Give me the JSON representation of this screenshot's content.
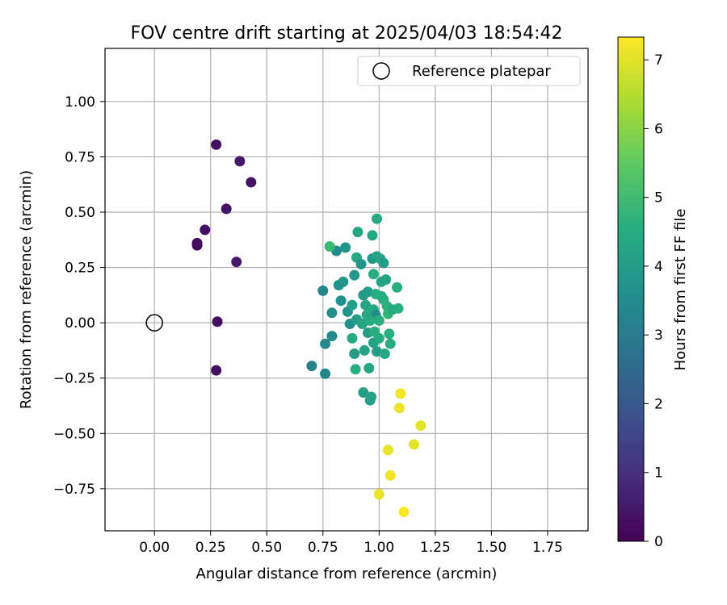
{
  "chart_data": {
    "type": "scatter",
    "title": "FOV centre drift starting at 2025/04/03 18:54:42",
    "xlabel": "Angular distance from reference (arcmin)",
    "ylabel": "Rotation from reference (arcmin)",
    "xlim": [
      -0.22,
      1.93
    ],
    "ylim": [
      -0.94,
      1.24
    ],
    "xticks": [
      "0.00",
      "0.25",
      "0.50",
      "0.75",
      "1.00",
      "1.25",
      "1.50",
      "1.75"
    ],
    "yticks": [
      "−0.75",
      "−0.50",
      "−0.25",
      "0.00",
      "0.25",
      "0.50",
      "0.75",
      "1.00"
    ],
    "grid": true,
    "legend": {
      "position": "top-right",
      "label": "Reference platepar"
    },
    "reference_point": {
      "x": 0.0,
      "y": 0.0
    },
    "colorbar": {
      "label": "Hours from first FF file",
      "min": 0,
      "max": 7.33,
      "ticks": [
        "0",
        "1",
        "2",
        "3",
        "4",
        "5",
        "6",
        "7"
      ],
      "colormap": "viridis"
    },
    "points": [
      {
        "x": 0.275,
        "y": 0.805,
        "c": 0.3
      },
      {
        "x": 0.38,
        "y": 0.73,
        "c": 0.5
      },
      {
        "x": 0.43,
        "y": 0.635,
        "c": 0.4
      },
      {
        "x": 0.32,
        "y": 0.515,
        "c": 0.4
      },
      {
        "x": 0.225,
        "y": 0.42,
        "c": 0.3
      },
      {
        "x": 0.19,
        "y": 0.36,
        "c": 0.2
      },
      {
        "x": 0.19,
        "y": 0.35,
        "c": 0.2
      },
      {
        "x": 0.365,
        "y": 0.275,
        "c": 0.5
      },
      {
        "x": 0.28,
        "y": 0.005,
        "c": 0.3
      },
      {
        "x": 0.275,
        "y": -0.215,
        "c": 0.3
      },
      {
        "x": 0.7,
        "y": -0.195,
        "c": 3.2
      },
      {
        "x": 0.76,
        "y": -0.23,
        "c": 3.3
      },
      {
        "x": 0.75,
        "y": 0.145,
        "c": 3.4
      },
      {
        "x": 0.76,
        "y": -0.095,
        "c": 3.4
      },
      {
        "x": 0.79,
        "y": -0.06,
        "c": 3.5
      },
      {
        "x": 0.79,
        "y": 0.045,
        "c": 3.6
      },
      {
        "x": 0.81,
        "y": 0.325,
        "c": 3.5
      },
      {
        "x": 0.82,
        "y": 0.17,
        "c": 3.7
      },
      {
        "x": 0.83,
        "y": 0.1,
        "c": 3.6
      },
      {
        "x": 0.85,
        "y": 0.34,
        "c": 3.8
      },
      {
        "x": 0.84,
        "y": 0.185,
        "c": 3.8
      },
      {
        "x": 0.86,
        "y": 0.05,
        "c": 3.7
      },
      {
        "x": 0.87,
        "y": -0.005,
        "c": 3.6
      },
      {
        "x": 0.88,
        "y": 0.08,
        "c": 4.2
      },
      {
        "x": 0.89,
        "y": 0.215,
        "c": 3.9
      },
      {
        "x": 0.89,
        "y": -0.14,
        "c": 4.0
      },
      {
        "x": 0.9,
        "y": 0.015,
        "c": 4.0
      },
      {
        "x": 0.905,
        "y": 0.41,
        "c": 4.3
      },
      {
        "x": 0.9,
        "y": 0.295,
        "c": 4.4
      },
      {
        "x": 0.92,
        "y": 0.265,
        "c": 3.8
      },
      {
        "x": 0.93,
        "y": 0.125,
        "c": 3.9
      },
      {
        "x": 0.935,
        "y": -0.125,
        "c": 4.2
      },
      {
        "x": 0.925,
        "y": -0.005,
        "c": 4.3
      },
      {
        "x": 0.93,
        "y": -0.315,
        "c": 4.1
      },
      {
        "x": 0.95,
        "y": 0.14,
        "c": 4.0
      },
      {
        "x": 0.95,
        "y": -0.045,
        "c": 4.1
      },
      {
        "x": 0.955,
        "y": -0.205,
        "c": 4.3
      },
      {
        "x": 0.96,
        "y": -0.35,
        "c": 4.0
      },
      {
        "x": 0.965,
        "y": -0.335,
        "c": 4.2
      },
      {
        "x": 0.97,
        "y": 0.395,
        "c": 4.4
      },
      {
        "x": 0.97,
        "y": 0.29,
        "c": 3.9
      },
      {
        "x": 0.975,
        "y": 0.22,
        "c": 4.5
      },
      {
        "x": 0.975,
        "y": 0.06,
        "c": 4.4
      },
      {
        "x": 0.975,
        "y": -0.09,
        "c": 4.2
      },
      {
        "x": 0.98,
        "y": -0.04,
        "c": 4.6
      },
      {
        "x": 0.985,
        "y": 0.035,
        "c": 3.5
      },
      {
        "x": 0.99,
        "y": 0.47,
        "c": 4.4
      },
      {
        "x": 0.99,
        "y": 0.3,
        "c": 4.2
      },
      {
        "x": 0.99,
        "y": -0.13,
        "c": 4.0
      },
      {
        "x": 1.0,
        "y": 0.01,
        "c": 4.6
      },
      {
        "x": 1.005,
        "y": 0.29,
        "c": 4.3
      },
      {
        "x": 1.01,
        "y": 0.185,
        "c": 4.3
      },
      {
        "x": 1.01,
        "y": 0.12,
        "c": 4.5
      },
      {
        "x": 1.02,
        "y": 0.105,
        "c": 4.6
      },
      {
        "x": 1.02,
        "y": 0.27,
        "c": 4.0
      },
      {
        "x": 1.025,
        "y": -0.14,
        "c": 4.4
      },
      {
        "x": 1.03,
        "y": 0.195,
        "c": 4.2
      },
      {
        "x": 1.035,
        "y": 0.075,
        "c": 4.7
      },
      {
        "x": 1.04,
        "y": 0.04,
        "c": 4.8
      },
      {
        "x": 1.045,
        "y": -0.05,
        "c": 4.6
      },
      {
        "x": 1.05,
        "y": -0.095,
        "c": 4.5
      },
      {
        "x": 1.06,
        "y": 0.06,
        "c": 4.4
      },
      {
        "x": 1.08,
        "y": 0.16,
        "c": 4.6
      },
      {
        "x": 1.085,
        "y": 0.065,
        "c": 4.6
      },
      {
        "x": 0.88,
        "y": -0.07,
        "c": 4.5
      },
      {
        "x": 0.94,
        "y": 0.08,
        "c": 4.3
      },
      {
        "x": 0.96,
        "y": 0.01,
        "c": 4.5
      },
      {
        "x": 1.0,
        "y": -0.07,
        "c": 4.5
      },
      {
        "x": 0.985,
        "y": 0.13,
        "c": 4.6
      },
      {
        "x": 0.945,
        "y": 0.035,
        "c": 4.4
      },
      {
        "x": 0.78,
        "y": 0.345,
        "c": 4.9
      },
      {
        "x": 0.895,
        "y": -0.21,
        "c": 4.6
      },
      {
        "x": 1.095,
        "y": -0.32,
        "c": 7.2
      },
      {
        "x": 1.09,
        "y": -0.385,
        "c": 7.1
      },
      {
        "x": 1.185,
        "y": -0.465,
        "c": 7.0
      },
      {
        "x": 1.155,
        "y": -0.55,
        "c": 7.0
      },
      {
        "x": 1.04,
        "y": -0.575,
        "c": 7.1
      },
      {
        "x": 1.05,
        "y": -0.69,
        "c": 7.2
      },
      {
        "x": 1.0,
        "y": -0.775,
        "c": 7.1
      },
      {
        "x": 1.11,
        "y": -0.855,
        "c": 7.3
      }
    ]
  }
}
